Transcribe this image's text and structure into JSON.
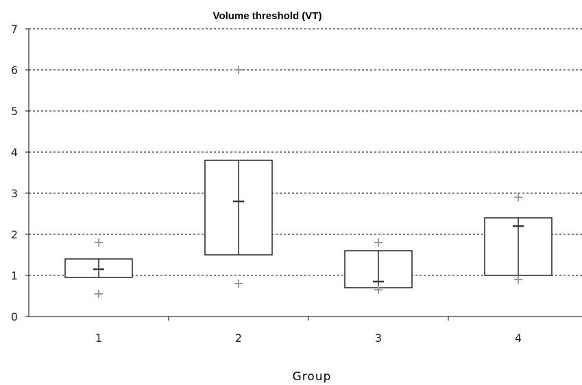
{
  "chart_data": {
    "type": "boxplot",
    "title": "Volume threshold (VT)",
    "xlabel": "Group",
    "ylabel": "",
    "ylim": [
      0,
      7
    ],
    "yticks": [
      "0",
      "1",
      "2",
      "3",
      "4",
      "5",
      "6",
      "7"
    ],
    "categories": [
      "1",
      "2",
      "3",
      "4"
    ],
    "grid": "horizontal dashed",
    "boxes": [
      {
        "category": "1",
        "q1": 0.95,
        "q3": 1.4,
        "median": 1.15,
        "min": 0.95,
        "max": 1.4,
        "outliers": [
          1.8,
          0.55
        ]
      },
      {
        "category": "2",
        "q1": 1.5,
        "q3": 3.8,
        "median": 2.8,
        "min": 1.5,
        "max": 3.8,
        "outliers": [
          6.0,
          0.8
        ]
      },
      {
        "category": "3",
        "q1": 0.7,
        "q3": 1.6,
        "median": 0.85,
        "min": 0.7,
        "max": 1.6,
        "outliers": [
          1.8,
          0.65
        ]
      },
      {
        "category": "4",
        "q1": 1.0,
        "q3": 2.4,
        "median": 2.2,
        "min": 1.0,
        "max": 2.4,
        "outliers": [
          2.9,
          0.9
        ]
      }
    ]
  }
}
